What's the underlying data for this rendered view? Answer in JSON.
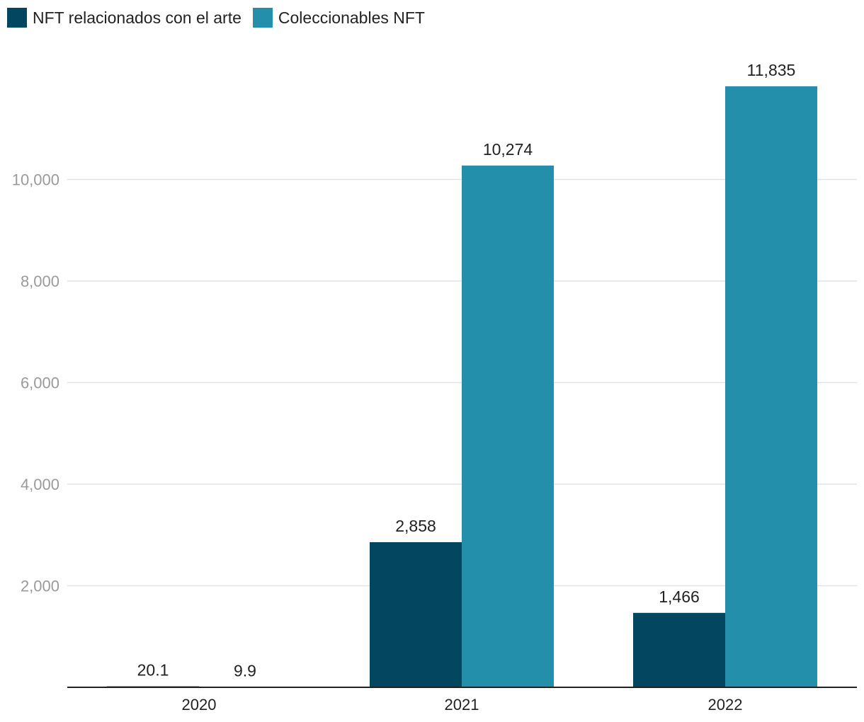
{
  "chart_data": {
    "type": "bar",
    "categories": [
      "2020",
      "2021",
      "2022"
    ],
    "series": [
      {
        "name": "NFT relacionados con el arte",
        "color": "#03465f",
        "values": [
          20.1,
          2858,
          1466
        ],
        "labels": [
          "20.1",
          "2,858",
          "1,466"
        ]
      },
      {
        "name": "Coleccionables NFT",
        "color": "#238fab",
        "values": [
          9.9,
          10274,
          11835
        ],
        "labels": [
          "9.9",
          "10,274",
          "11,835"
        ]
      }
    ],
    "ylim": [
      0,
      12600
    ],
    "yticks": [
      2000,
      4000,
      6000,
      8000,
      10000
    ],
    "ytick_labels": [
      "2,000",
      "4,000",
      "6,000",
      "8,000",
      "10,000"
    ],
    "grid": true,
    "legend_position": "top-left",
    "title": "",
    "xlabel": "",
    "ylabel": ""
  }
}
